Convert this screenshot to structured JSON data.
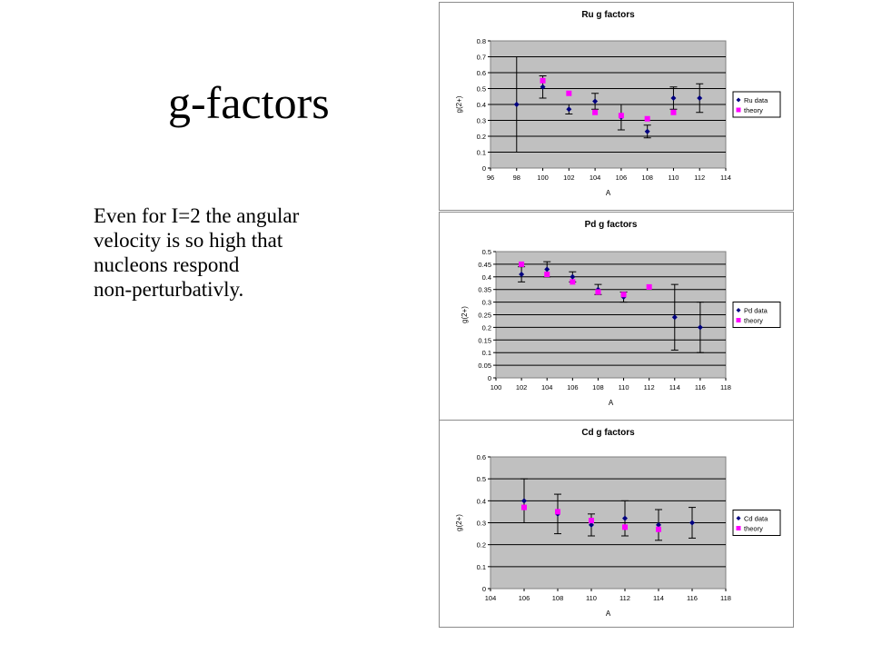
{
  "slide": {
    "title": "g-factors",
    "text_lines": [
      "Even for I=2 the angular",
      "velocity is so high that",
      "nucleons respond",
      "non-perturbativly."
    ]
  },
  "colors": {
    "plot_bg": "#c0c0c0",
    "data": "#000080",
    "theory": "#ff00ff",
    "error_bar": "#000000"
  },
  "chart_data": [
    {
      "type": "scatter",
      "title": "Ru g factors",
      "xlabel": "A",
      "ylabel": "g(2+)",
      "xlim": [
        96,
        114
      ],
      "ylim": [
        0,
        0.8
      ],
      "xticks": [
        "96",
        "98",
        "100",
        "102",
        "104",
        "106",
        "108",
        "110",
        "112",
        "114"
      ],
      "yticks": [
        "0",
        "0.1",
        "0.2",
        "0.3",
        "0.4",
        "0.5",
        "0.6",
        "0.7",
        "0.8"
      ],
      "grid": true,
      "legend": "right",
      "series": [
        {
          "name": "Ru data",
          "marker": "diamond",
          "x": [
            98,
            100,
            102,
            104,
            106,
            108,
            110,
            112
          ],
          "y": [
            0.4,
            0.51,
            0.37,
            0.42,
            0.32,
            0.23,
            0.44,
            0.44
          ],
          "err": [
            0.3,
            0.07,
            0.03,
            0.05,
            0.08,
            0.04,
            0.07,
            0.09
          ]
        },
        {
          "name": "theory",
          "marker": "square",
          "x": [
            100,
            102,
            104,
            106,
            108,
            110
          ],
          "y": [
            0.55,
            0.47,
            0.35,
            0.33,
            0.31,
            0.35
          ]
        }
      ]
    },
    {
      "type": "scatter",
      "title": "Pd g factors",
      "xlabel": "A",
      "ylabel": "g(2+)",
      "xlim": [
        100,
        118
      ],
      "ylim": [
        0,
        0.5
      ],
      "xticks": [
        "100",
        "102",
        "104",
        "106",
        "108",
        "110",
        "112",
        "114",
        "116",
        "118"
      ],
      "yticks": [
        "0",
        "0.05",
        "0.1",
        "0.15",
        "0.2",
        "0.25",
        "0.3",
        "0.35",
        "0.4",
        "0.45",
        "0.5"
      ],
      "grid": true,
      "legend": "right",
      "series": [
        {
          "name": "Pd data",
          "marker": "diamond",
          "x": [
            102,
            104,
            106,
            108,
            110,
            114,
            116
          ],
          "y": [
            0.41,
            0.43,
            0.4,
            0.35,
            0.32,
            0.24,
            0.2
          ],
          "err": [
            0.03,
            0.03,
            0.02,
            0.02,
            0.02,
            0.13,
            0.1
          ]
        },
        {
          "name": "theory",
          "marker": "square",
          "x": [
            102,
            104,
            106,
            108,
            110,
            112
          ],
          "y": [
            0.45,
            0.41,
            0.38,
            0.34,
            0.33,
            0.36
          ]
        }
      ]
    },
    {
      "type": "scatter",
      "title": "Cd g factors",
      "xlabel": "A",
      "ylabel": "g(2+)",
      "xlim": [
        104,
        118
      ],
      "ylim": [
        0,
        0.6
      ],
      "xticks": [
        "104",
        "106",
        "108",
        "110",
        "112",
        "114",
        "116",
        "118"
      ],
      "yticks": [
        "0",
        "0.1",
        "0.2",
        "0.3",
        "0.4",
        "0.5",
        "0.6"
      ],
      "grid": true,
      "legend": "right",
      "series": [
        {
          "name": "Cd data",
          "marker": "diamond",
          "x": [
            106,
            108,
            110,
            112,
            114,
            116
          ],
          "y": [
            0.4,
            0.34,
            0.29,
            0.32,
            0.29,
            0.3
          ],
          "err": [
            0.1,
            0.09,
            0.05,
            0.08,
            0.07,
            0.07
          ]
        },
        {
          "name": "theory",
          "marker": "square",
          "x": [
            106,
            108,
            110,
            112,
            114
          ],
          "y": [
            0.37,
            0.35,
            0.31,
            0.28,
            0.27
          ]
        }
      ]
    }
  ]
}
